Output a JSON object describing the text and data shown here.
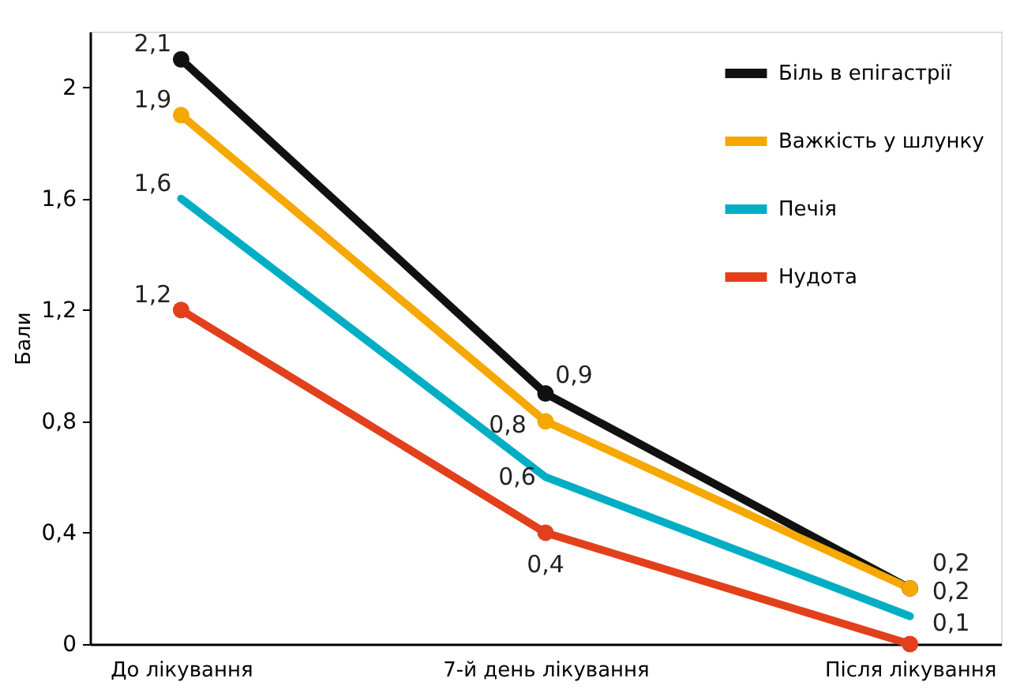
{
  "chart_data": {
    "type": "line",
    "ylabel": "Бали",
    "categories": [
      "До лікування",
      "7-й день лікування",
      "Після лікування"
    ],
    "series": [
      {
        "name": "Біль в епігастрії",
        "color": "#111111",
        "values": [
          2.1,
          0.9,
          0.2
        ],
        "value_labels": [
          "2,1",
          "0,9",
          "0,2"
        ],
        "marker": "circle"
      },
      {
        "name": "Важкість у шлунку",
        "color": "#f5a800",
        "values": [
          1.9,
          0.8,
          0.2
        ],
        "value_labels": [
          "1,9",
          "0,8",
          "0,2"
        ],
        "marker": "circle"
      },
      {
        "name": "Печія",
        "color": "#00aec4",
        "values": [
          1.6,
          0.6,
          0.1
        ],
        "value_labels": [
          "1,6",
          "0,6",
          "0,1"
        ],
        "marker": "none"
      },
      {
        "name": "Нудота",
        "color": "#e2401c",
        "values": [
          1.2,
          0.4,
          0
        ],
        "value_labels": [
          "1,2",
          "0,4",
          null
        ],
        "marker": "circle"
      }
    ],
    "ylim": [
      0,
      2.2
    ],
    "yticks": [
      0,
      {
        "value": 0.4,
        "label": "0,4"
      },
      {
        "value": 0.8,
        "label": "0,8"
      },
      {
        "value": 1.2,
        "label": "1,2"
      },
      {
        "value": 1.6,
        "label": "1,6"
      },
      2
    ],
    "grid": false,
    "legend": "top right",
    "line_style": "solid"
  }
}
